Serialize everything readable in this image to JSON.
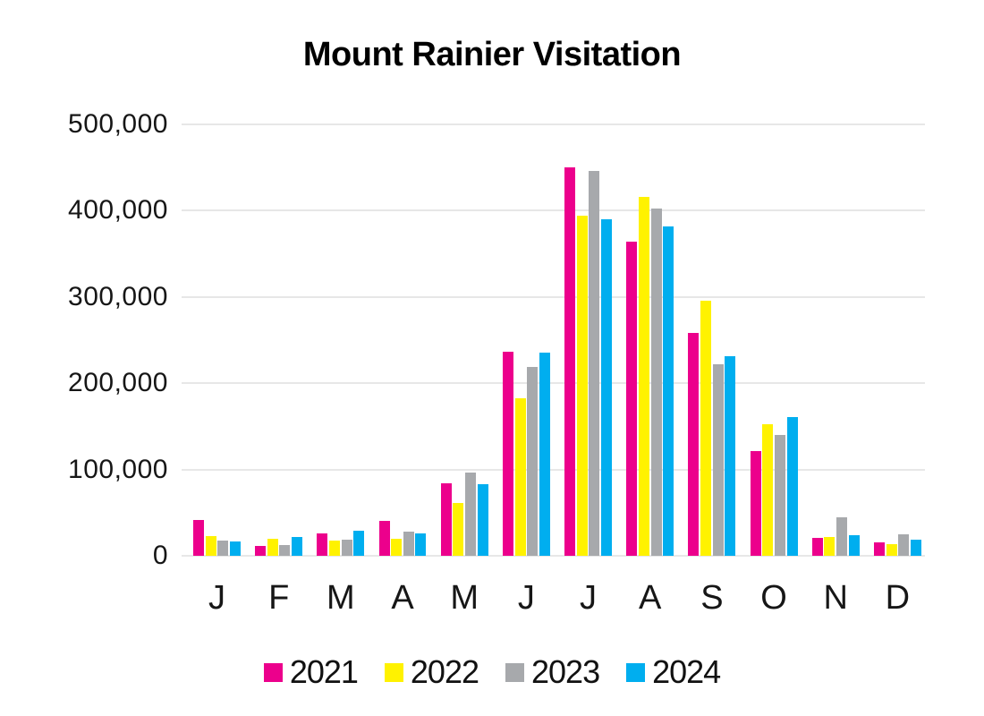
{
  "chart_data": {
    "type": "bar",
    "title": "Mount Rainier Visitation",
    "categories": [
      "J",
      "F",
      "M",
      "A",
      "M",
      "J",
      "J",
      "A",
      "S",
      "O",
      "N",
      "D"
    ],
    "series": [
      {
        "name": "2021",
        "color": "#EC008C",
        "values": [
          41000,
          11500,
          26000,
          40000,
          84000,
          237000,
          450000,
          364000,
          258000,
          121000,
          21000,
          16000
        ]
      },
      {
        "name": "2022",
        "color": "#FFF200",
        "values": [
          23000,
          19500,
          18000,
          20000,
          61000,
          183000,
          394000,
          416000,
          296000,
          152000,
          21500,
          13000
        ]
      },
      {
        "name": "2023",
        "color": "#A7A9AC",
        "values": [
          18000,
          12500,
          19000,
          28000,
          96000,
          219000,
          446000,
          402000,
          222000,
          140000,
          45000,
          25000
        ]
      },
      {
        "name": "2024",
        "color": "#00AEEF",
        "values": [
          17000,
          21500,
          29000,
          26000,
          83000,
          235000,
          390000,
          382000,
          231000,
          161000,
          24000,
          19000
        ]
      }
    ],
    "xlabel": "",
    "ylabel": "",
    "ylim": [
      0,
      500000
    ],
    "y_tick_labels": [
      "500,000",
      "400,000",
      "300,000",
      "200,000",
      "100,000",
      "0"
    ],
    "grid": "horizontal",
    "gridline_color": "#E7E7E7",
    "legend_position": "bottom"
  }
}
